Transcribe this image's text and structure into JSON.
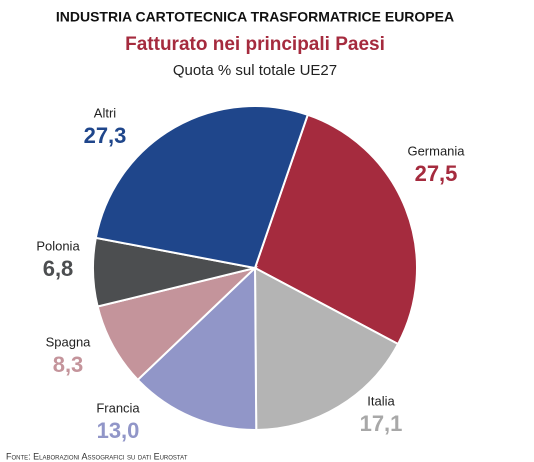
{
  "chart_data": {
    "type": "pie",
    "supertitle": "INDUSTRIA CARTOTECNICA TRASFORMATRICE EUROPEA",
    "title": "Fatturato nei principali Paesi",
    "subtitle": "Quota % sul totale UE27",
    "categories": [
      "Germania",
      "Italia",
      "Francia",
      "Spagna",
      "Polonia",
      "Altri"
    ],
    "values": [
      27.5,
      17.1,
      13.0,
      8.3,
      6.8,
      27.3
    ],
    "value_labels": [
      "27,5",
      "17,1",
      "13,0",
      "8,3",
      "6,8",
      "27,3"
    ],
    "colors": [
      "#a52b3e",
      "#b4b4b4",
      "#9196c8",
      "#c4949b",
      "#4c4e50",
      "#1f468b"
    ],
    "source": "Fonte: Elaborazioni Assografici su dati Eurostat"
  }
}
